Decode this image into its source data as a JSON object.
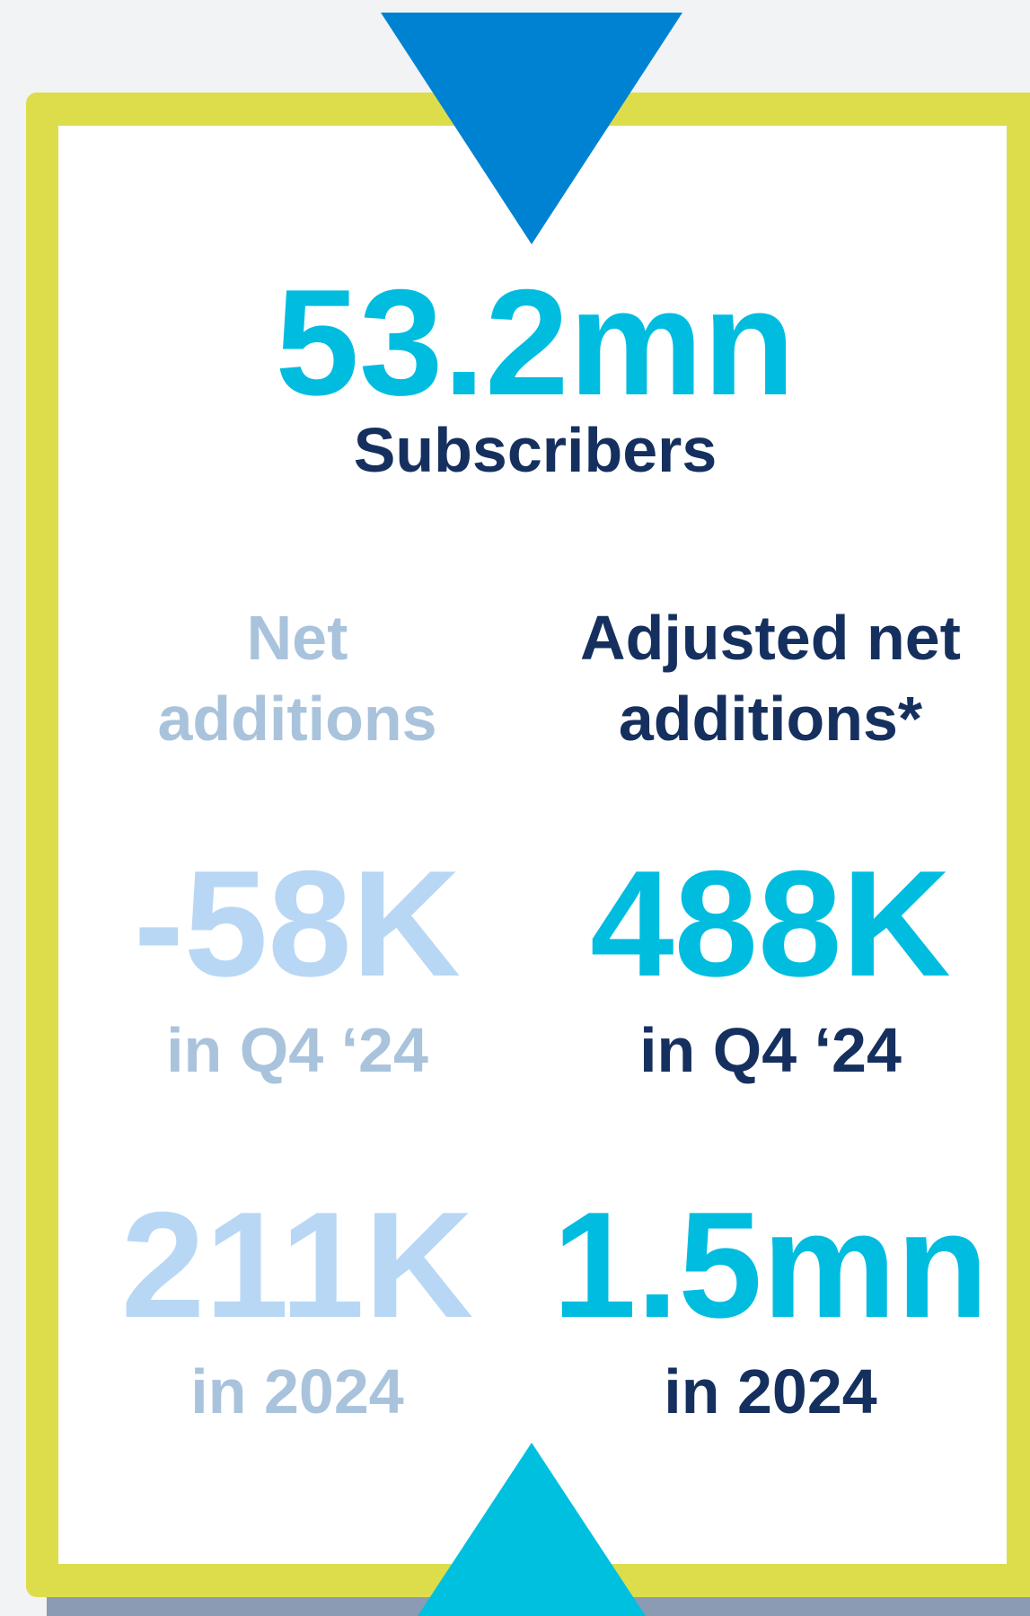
{
  "headline": {
    "value": "53.2mn",
    "label": "Subscribers"
  },
  "columns": [
    {
      "heading": [
        "Net",
        "additions"
      ],
      "stats": [
        {
          "value": "-58K",
          "period": "in Q4 ‘24"
        },
        {
          "value": "211K",
          "period": "in 2024"
        }
      ]
    },
    {
      "heading": [
        "Adjusted net",
        "additions*"
      ],
      "stats": [
        {
          "value": "488K",
          "period": "in Q4 ‘24"
        },
        {
          "value": "1.5mn",
          "period": "in 2024"
        }
      ]
    }
  ]
}
